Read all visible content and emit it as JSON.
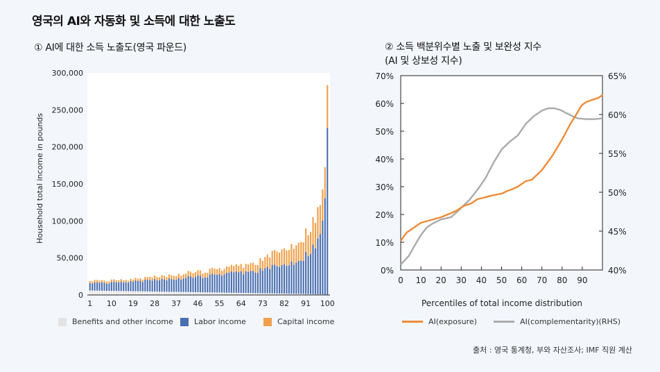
{
  "title": "영국의 AI와 자동화 및 소득에 대한 노출도",
  "source": "출처 : 영국 통계청, 부와 자산조사; IMF 직원 계산",
  "chart_data": [
    {
      "type": "bar",
      "subtitle": "① AI에 대한 소득 노출도(영국 파운드)",
      "ylabel": "Household total income in pounds",
      "ylim": [
        0,
        300000
      ],
      "yticks": [
        0,
        50000,
        100000,
        150000,
        200000,
        250000,
        300000
      ],
      "ytick_labels": [
        "0",
        "50,000",
        "100,000",
        "150,000",
        "200,000",
        "250,000",
        "300,000"
      ],
      "xtick_labels": [
        "1",
        "10",
        "19",
        "28",
        "37",
        "46",
        "55",
        "64",
        "73",
        "82",
        "91",
        "100"
      ],
      "percentiles": [
        1,
        100
      ],
      "stacked": true,
      "series": [
        {
          "name": "Benefits and other income",
          "color": "#e3e3e3",
          "anchors": {
            "x": [
              1,
              20,
              40,
              60,
              80,
              90,
              95,
              98,
              100
            ],
            "values": [
              6000,
              5000,
              4000,
              3000,
              2000,
              1500,
              1000,
              800,
              500
            ]
          }
        },
        {
          "name": "Labor income",
          "color": "#4a6fb0",
          "anchors": {
            "x": [
              1,
              10,
              30,
              50,
              60,
              70,
              80,
              85,
              90,
              93,
              96,
              98,
              99,
              100
            ],
            "values": [
              10000,
              11000,
              16000,
              22000,
              26000,
              30000,
              37000,
              42000,
              50000,
              60000,
              72000,
              95000,
              130000,
              225000
            ]
          }
        },
        {
          "name": "Capital income",
          "color": "#f0a04b",
          "anchors": {
            "x": [
              1,
              20,
              40,
              50,
              60,
              70,
              80,
              85,
              90,
              93,
              96,
              98,
              99,
              100
            ],
            "values": [
              3000,
              3000,
              6000,
              7000,
              8000,
              11000,
              20000,
              23000,
              28000,
              33000,
              40000,
              40000,
              42000,
              58000
            ]
          }
        }
      ]
    },
    {
      "type": "line",
      "subtitle_line1": "② 소득 백분위수별 노출 및 보완성 지수",
      "subtitle_line2": "(AI 및 상보성 지수)",
      "xlabel": "Percentiles of total income distribution",
      "xlim": [
        0,
        100
      ],
      "xticks": [
        0,
        10,
        20,
        30,
        40,
        50,
        60,
        70,
        80,
        90
      ],
      "ylim_left": [
        0,
        70
      ],
      "yticks_left_labels": [
        "0%",
        "10%",
        "20%",
        "30%",
        "40%",
        "50%",
        "60%",
        "70%"
      ],
      "ylim_right": [
        40,
        65
      ],
      "yticks_right_labels": [
        "40%",
        "45%",
        "50%",
        "55%",
        "60%",
        "65%"
      ],
      "series": [
        {
          "name": "AI(exposure)",
          "axis": "left",
          "color": "#ee8a35",
          "x": [
            0,
            3,
            7,
            10,
            15,
            20,
            25,
            28,
            31,
            35,
            38,
            41,
            45,
            50,
            53,
            55,
            58,
            62,
            65,
            70,
            75,
            80,
            84,
            87,
            89,
            90,
            92,
            95,
            98,
            100
          ],
          "y": [
            10.5,
            13.5,
            15.5,
            17,
            18,
            19,
            20.5,
            21.5,
            23,
            24,
            25.5,
            26,
            26.8,
            27.5,
            28.5,
            29,
            30,
            32,
            32.5,
            36,
            41,
            47,
            52.5,
            56,
            58.5,
            59.5,
            60.5,
            61.3,
            62,
            63
          ]
        },
        {
          "name": "AI(complementarity)(RHS)",
          "axis": "right",
          "color": "#aaaaaa",
          "x": [
            0,
            4,
            7,
            10,
            13,
            16,
            20,
            25,
            28,
            30,
            34,
            38,
            42,
            46,
            50,
            54,
            58,
            62,
            66,
            70,
            73,
            76,
            79,
            82,
            85,
            88,
            92,
            96,
            100
          ],
          "y": [
            40.7,
            41.8,
            43.2,
            44.5,
            45.5,
            46,
            46.5,
            46.8,
            47.5,
            48,
            49,
            50.3,
            51.8,
            53.8,
            55.5,
            56.5,
            57.3,
            58.8,
            59.8,
            60.5,
            60.8,
            60.8,
            60.6,
            60.2,
            59.8,
            59.5,
            59.4,
            59.4,
            59.5
          ]
        }
      ]
    }
  ]
}
